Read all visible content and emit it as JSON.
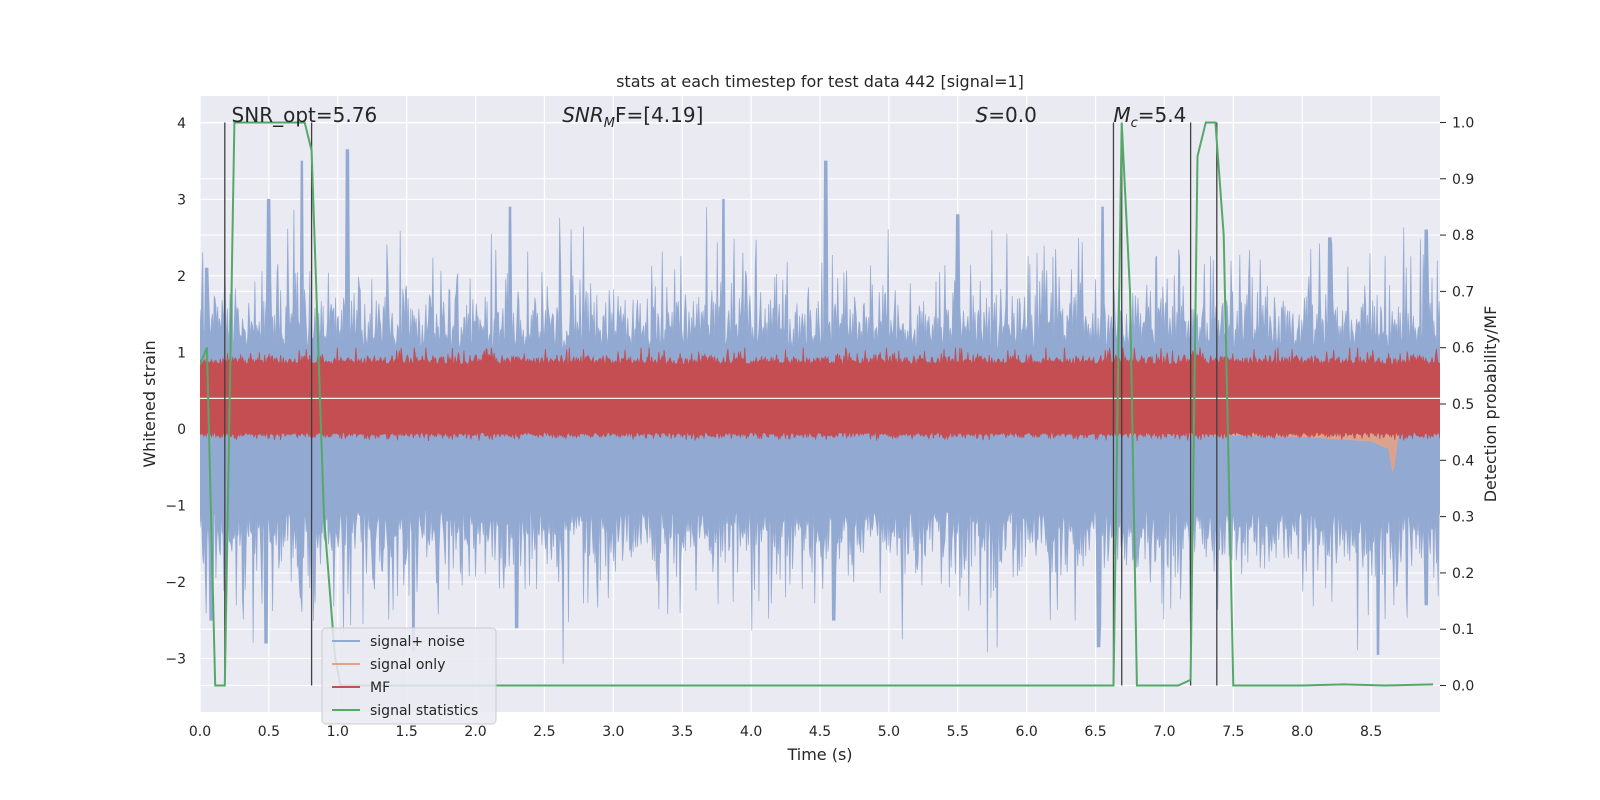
{
  "chart_data": {
    "type": "line",
    "title": "stats at each timestep for test data 442 [signal=1]",
    "xlabel": "Time (s)",
    "ylabel": "Whitened strain",
    "ylabel_right": "Detection probability/MF",
    "xlim": [
      0.0,
      9.0
    ],
    "ylim": [
      -3.7,
      4.35
    ],
    "ylim_right": [
      -0.047,
      1.047
    ],
    "grid": true,
    "legend_position": "lower-left",
    "xticks": [
      "0.0",
      "0.5",
      "1.0",
      "1.5",
      "2.0",
      "2.5",
      "3.0",
      "3.5",
      "4.0",
      "4.5",
      "5.0",
      "5.5",
      "6.0",
      "6.5",
      "7.0",
      "7.5",
      "8.0",
      "8.5"
    ],
    "yticks_left": [
      "−3",
      "−2",
      "−1",
      "0",
      "1",
      "2",
      "3",
      "4"
    ],
    "yticks_right": [
      "0.0",
      "0.1",
      "0.2",
      "0.3",
      "0.4",
      "0.5",
      "0.6",
      "0.7",
      "0.8",
      "0.9",
      "1.0"
    ],
    "annotations": [
      {
        "id": "snr-opt",
        "text": "SNR_opt=5.76",
        "x": 0.2,
        "y": 4.0
      },
      {
        "id": "snr-mf",
        "base": "SNR",
        "sub": "M",
        "rest": "F=[4.19]",
        "x": 2.6,
        "y": 4.0
      },
      {
        "id": "s-value",
        "base": "S",
        "rest": "=0.0",
        "x": 5.6,
        "y": 4.0
      },
      {
        "id": "mc-value",
        "base": "M",
        "sub": "c",
        "rest": "=5.4",
        "x": 6.6,
        "y": 4.0
      }
    ],
    "vertical_lines_x": [
      0.18,
      0.81,
      6.63,
      6.69,
      7.19,
      7.38
    ],
    "series": [
      {
        "name": "signal+ noise",
        "color": "#92a9d1",
        "description_shape": "noise band",
        "envelope_upper": 1.05,
        "envelope_lower": -1.05,
        "peak_upper": [
          [
            0.05,
            2.1
          ],
          [
            0.5,
            3.0
          ],
          [
            0.74,
            3.5
          ],
          [
            1.07,
            3.65
          ],
          [
            2.25,
            2.9
          ],
          [
            3.8,
            3.0
          ],
          [
            4.54,
            3.5
          ],
          [
            5.5,
            2.8
          ],
          [
            6.55,
            2.9
          ],
          [
            8.2,
            2.5
          ],
          [
            8.9,
            2.6
          ]
        ],
        "peak_lower": [
          [
            0.08,
            -2.5
          ],
          [
            0.48,
            -2.8
          ],
          [
            1.55,
            -2.9
          ],
          [
            2.3,
            -2.6
          ],
          [
            4.6,
            -2.5
          ],
          [
            6.52,
            -2.85
          ],
          [
            8.55,
            -2.95
          ],
          [
            8.9,
            -2.3
          ]
        ]
      },
      {
        "name": "signal only",
        "color": "#e8a283",
        "x": [
          0.0,
          1.0,
          2.0,
          3.0,
          4.0,
          5.0,
          6.0,
          7.0,
          8.0,
          8.5,
          8.63,
          8.66,
          8.7
        ],
        "amplitude": [
          0.01,
          0.012,
          0.015,
          0.018,
          0.022,
          0.03,
          0.05,
          0.07,
          0.1,
          0.16,
          0.26,
          0.6,
          0.0
        ]
      },
      {
        "name": "MF",
        "color": "#c44e52",
        "right_axis": true,
        "baseline": 0.51,
        "band": [
          0.45,
          0.57
        ],
        "peak_max": 0.6
      },
      {
        "name": "signal statistics",
        "color": "#55a868",
        "right_axis": true,
        "x": [
          0.0,
          0.05,
          0.11,
          0.18,
          0.25,
          0.76,
          0.81,
          0.9,
          0.98,
          1.02,
          1.5,
          2.0,
          3.0,
          4.0,
          5.0,
          6.0,
          6.5,
          6.63,
          6.69,
          6.75,
          6.8,
          6.85,
          7.1,
          7.19,
          7.24,
          7.3,
          7.37,
          7.43,
          7.5,
          7.55,
          8.0,
          8.3,
          8.6,
          8.95
        ],
        "y": [
          0.57,
          0.6,
          0.0,
          0.0,
          1.0,
          1.0,
          0.95,
          0.3,
          0.05,
          0.0,
          0.0,
          0.0,
          0.0,
          0.0,
          0.0,
          0.0,
          0.0,
          0.0,
          1.0,
          0.7,
          0.0,
          0.0,
          0.0,
          0.01,
          0.94,
          1.0,
          1.0,
          0.8,
          0.0,
          0.0,
          0.0,
          0.002,
          0.0,
          0.002
        ]
      }
    ]
  }
}
